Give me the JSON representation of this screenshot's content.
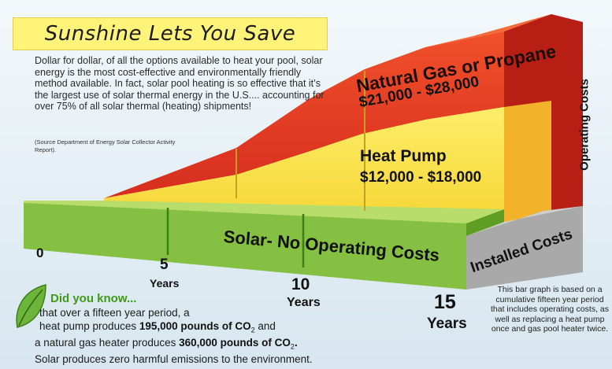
{
  "title": "Sunshine Lets You Save",
  "intro": "Dollar for dollar, of all the options available to heat your pool, solar energy is the most cost-effective and environmentally friendly method available. In fact, solar pool heating is so effective that it’s the largest use of solar thermal energy in the U.S.... accounting for over 75% of all solar thermal (heating) shipments!",
  "source_note": "(Source Department of Energy Solar Collector Activity Report).",
  "colors": {
    "gas": "#e53322",
    "heat_pump": "#fbe44a",
    "solar": "#86c043",
    "installed": "#a8a8a8",
    "accent_green": "#3f9a16"
  },
  "chart_data": {
    "type": "area",
    "title": "",
    "xlabel": "Years",
    "ylabel": "Operating Costs",
    "x_ticks": [
      "0",
      "5",
      "10",
      "15"
    ],
    "x_tick_unit": "Years",
    "series": [
      {
        "name": "Solar- No Operating Costs",
        "label": "Solar- No Operating Costs",
        "range": "",
        "value": [
          0,
          0
        ]
      },
      {
        "name": "Heat Pump",
        "label": "Heat Pump",
        "range": "$12,000 - $18,000",
        "value": [
          12000,
          18000
        ]
      },
      {
        "name": "Natural Gas or Propane",
        "label": "Natural Gas or Propane",
        "range": "$21,000 - $28,000",
        "value": [
          21000,
          28000
        ]
      }
    ],
    "installed_costs_label": "Installed Costs",
    "footnote": "This bar graph is based on a cumulative fifteen year period that includes operating costs, as well as replacing a heat pump once and gas pool heater twice."
  },
  "did_you_know": {
    "heading": "Did you know...",
    "line1": "that over a fifteen year period, a",
    "line2_pre": "heat pump produces ",
    "line2_bold": "195,000 pounds of CO",
    "line2_sub": "2",
    "line2_post": " and",
    "line3_pre": "a natural gas heater produces ",
    "line3_bold": "360,000 pounds of CO",
    "line3_sub": "2",
    "line3_post": ".",
    "line4": "Solar produces zero harmful emissions to the environment."
  }
}
